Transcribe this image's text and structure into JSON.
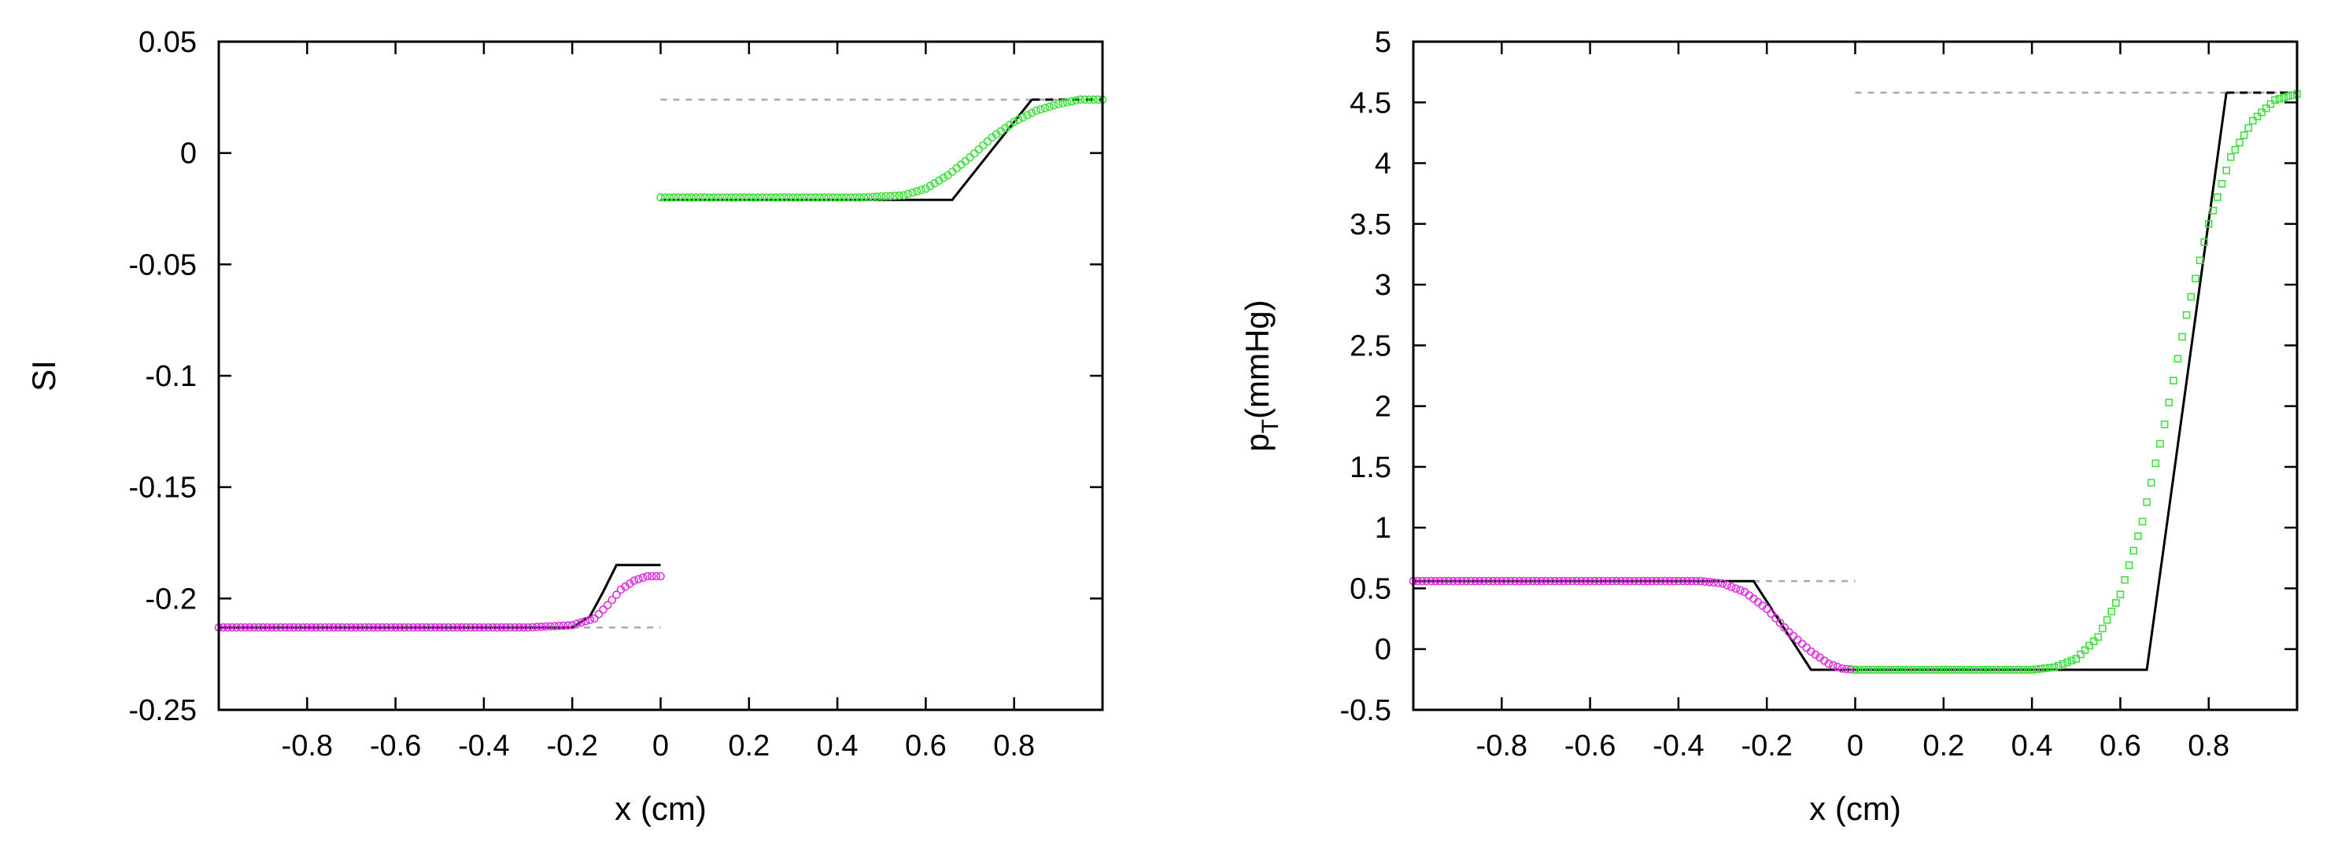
{
  "chart_data": [
    {
      "type": "line",
      "title": "",
      "xlabel": "x (cm)",
      "ylabel": "SI",
      "xlim": [
        -1,
        1
      ],
      "ylim": [
        -0.25,
        0.05
      ],
      "xticks": [
        -0.8,
        -0.6,
        -0.4,
        -0.2,
        0,
        0.2,
        0.4,
        0.6,
        0.8
      ],
      "xtick_labels": [
        "-0.8",
        "-0.6",
        "-0.4",
        "-0.2",
        "0",
        "0.2",
        "0.4",
        "0.6",
        "0.8"
      ],
      "yticks": [
        0.05,
        0,
        -0.05,
        -0.1,
        -0.15,
        -0.2,
        -0.25
      ],
      "ytick_labels": [
        "0.05",
        "0",
        "-0.05",
        "-0.1",
        "-0.15",
        "-0.2",
        "-0.25"
      ],
      "grid": false,
      "series": [
        {
          "style": "dashed-initial",
          "color": "#aaaaaa",
          "segments": [
            {
              "x": [
                -1,
                0
              ],
              "y": [
                -0.213,
                -0.213
              ]
            },
            {
              "x": [
                0,
                1
              ],
              "y": [
                0.024,
                0.024
              ]
            }
          ]
        },
        {
          "style": "solid-exact",
          "color": "#000000",
          "segments": [
            {
              "x": [
                -1,
                -0.2,
                -0.16,
                -0.13,
                -0.1,
                0
              ],
              "y": [
                -0.213,
                -0.213,
                -0.208,
                -0.197,
                -0.185,
                -0.185
              ]
            },
            {
              "x": [
                0,
                0.66,
                0.84
              ],
              "y": [
                -0.021,
                -0.021,
                0.024
              ]
            }
          ]
        },
        {
          "style": "dashed-exact",
          "color": "#000000",
          "segments": [
            {
              "x": [
                0.84,
                1
              ],
              "y": [
                0.024,
                0.024
              ]
            }
          ]
        },
        {
          "style": "markers-circle",
          "color": "#e030e0",
          "segments": [
            {
              "x": [
                -1,
                -0.3,
                -0.2,
                -0.15,
                -0.12,
                -0.09,
                -0.06,
                -0.03,
                0
              ],
              "y": [
                -0.213,
                -0.213,
                -0.212,
                -0.209,
                -0.203,
                -0.196,
                -0.192,
                -0.19,
                -0.19
              ]
            }
          ]
        },
        {
          "style": "markers-circle",
          "color": "#40e040",
          "segments": [
            {
              "x": [
                0,
                0.45,
                0.55,
                0.6,
                0.65,
                0.7,
                0.75,
                0.8,
                0.85,
                0.9,
                0.95,
                1
              ],
              "y": [
                -0.02,
                -0.02,
                -0.019,
                -0.016,
                -0.01,
                -0.002,
                0.007,
                0.014,
                0.019,
                0.022,
                0.024,
                0.024
              ]
            }
          ]
        }
      ]
    },
    {
      "type": "line",
      "title": "",
      "xlabel": "x (cm)",
      "ylabel": "p",
      "ylabel_sub": "T",
      "ylabel_rest": "(mmHg)",
      "xlim": [
        -1,
        1
      ],
      "ylim": [
        -0.5,
        5
      ],
      "xticks": [
        -0.8,
        -0.6,
        -0.4,
        -0.2,
        0,
        0.2,
        0.4,
        0.6,
        0.8
      ],
      "xtick_labels": [
        "-0.8",
        "-0.6",
        "-0.4",
        "-0.2",
        "0",
        "0.2",
        "0.4",
        "0.6",
        "0.8"
      ],
      "yticks": [
        5,
        4.5,
        4,
        3.5,
        3,
        2.5,
        2,
        1.5,
        1,
        0.5,
        0,
        -0.5
      ],
      "ytick_labels": [
        "5",
        "4.5",
        "4",
        "3.5",
        "3",
        "2.5",
        "2",
        "1.5",
        "1",
        "0.5",
        "0",
        "-0.5"
      ],
      "grid": false,
      "series": [
        {
          "style": "dashed-initial",
          "color": "#aaaaaa",
          "segments": [
            {
              "x": [
                -1,
                0
              ],
              "y": [
                0.56,
                0.56
              ]
            },
            {
              "x": [
                0,
                1
              ],
              "y": [
                4.58,
                4.58
              ]
            }
          ]
        },
        {
          "style": "solid-exact",
          "color": "#000000",
          "segments": [
            {
              "x": [
                -1,
                -0.23,
                -0.1,
                0.66,
                0.84
              ],
              "y": [
                0.56,
                0.56,
                -0.17,
                -0.17,
                4.58
              ]
            }
          ]
        },
        {
          "style": "dashed-exact",
          "color": "#000000",
          "segments": [
            {
              "x": [
                0.84,
                1
              ],
              "y": [
                4.58,
                4.58
              ]
            }
          ]
        },
        {
          "style": "markers-circle",
          "color": "#e030e0",
          "segments": [
            {
              "x": [
                -1,
                -0.35,
                -0.3,
                -0.25,
                -0.2,
                -0.15,
                -0.1,
                -0.06,
                -0.03,
                0
              ],
              "y": [
                0.56,
                0.56,
                0.54,
                0.47,
                0.33,
                0.14,
                -0.02,
                -0.12,
                -0.16,
                -0.17
              ]
            }
          ]
        },
        {
          "style": "markers-square",
          "color": "#40e040",
          "segments": [
            {
              "x": [
                0,
                0.4,
                0.45,
                0.5,
                0.55,
                0.6,
                0.65,
                0.7,
                0.75,
                0.8,
                0.85,
                0.9,
                0.95,
                1
              ],
              "y": [
                -0.17,
                -0.17,
                -0.15,
                -0.08,
                0.1,
                0.45,
                1.05,
                1.85,
                2.75,
                3.5,
                4.05,
                4.35,
                4.52,
                4.57
              ]
            }
          ]
        }
      ]
    }
  ]
}
